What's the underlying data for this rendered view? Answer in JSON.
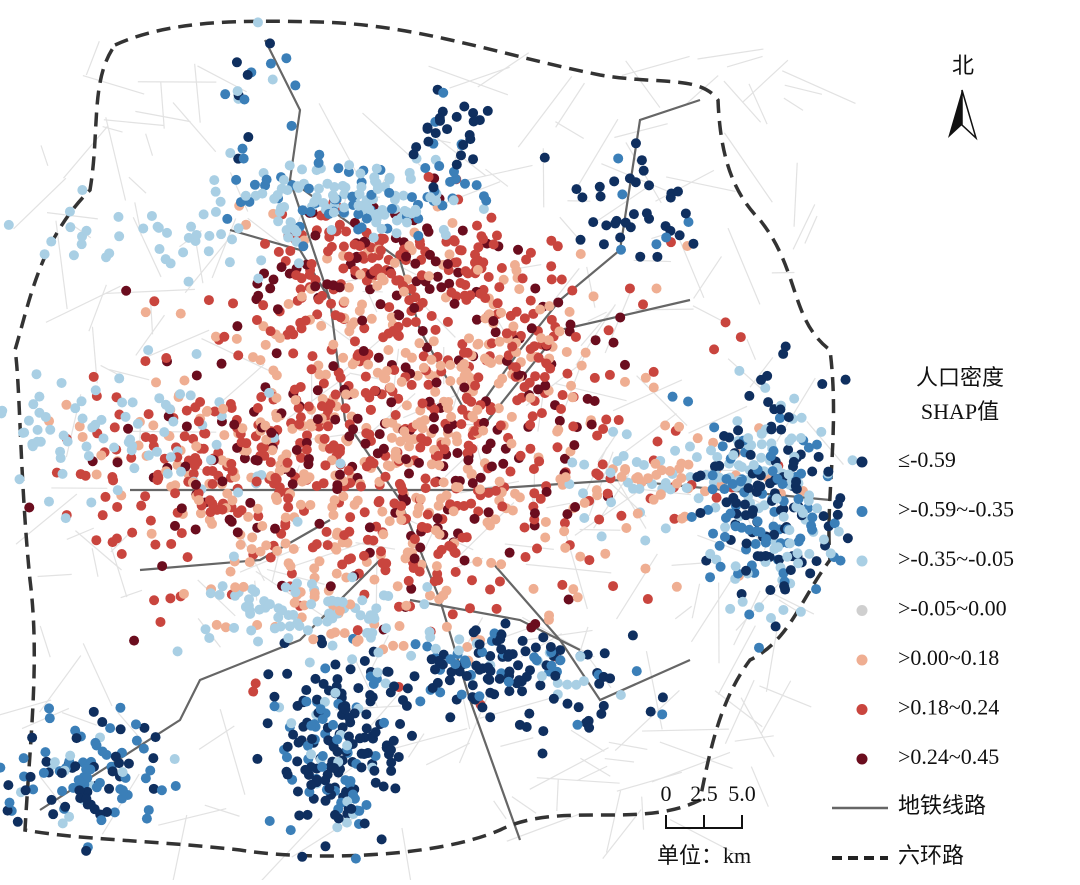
{
  "north_label": "北",
  "legend": {
    "title_line1": "人口密度",
    "title_line2": "SHAP值",
    "items": [
      {
        "label": "≤-0.59",
        "color": "#0f2f5f"
      },
      {
        "label": ">-0.59~-0.35",
        "color": "#3b7fb8"
      },
      {
        "label": ">-0.35~-0.05",
        "color": "#a9cfe4"
      },
      {
        "label": ">-0.05~0.00",
        "color": "#cfcfcf"
      },
      {
        "label": ">0.00~0.18",
        "color": "#efae92"
      },
      {
        "label": ">0.18~0.24",
        "color": "#c9453e"
      },
      {
        "label": ">0.24~0.45",
        "color": "#6b0d1e"
      }
    ],
    "subway_label": "地铁线路",
    "ring_label": "六环路"
  },
  "scale_bar": {
    "ticks": [
      0,
      2.5,
      {
        "value": 5,
        "label": "5.0"
      }
    ],
    "unit": "单位：km"
  }
}
